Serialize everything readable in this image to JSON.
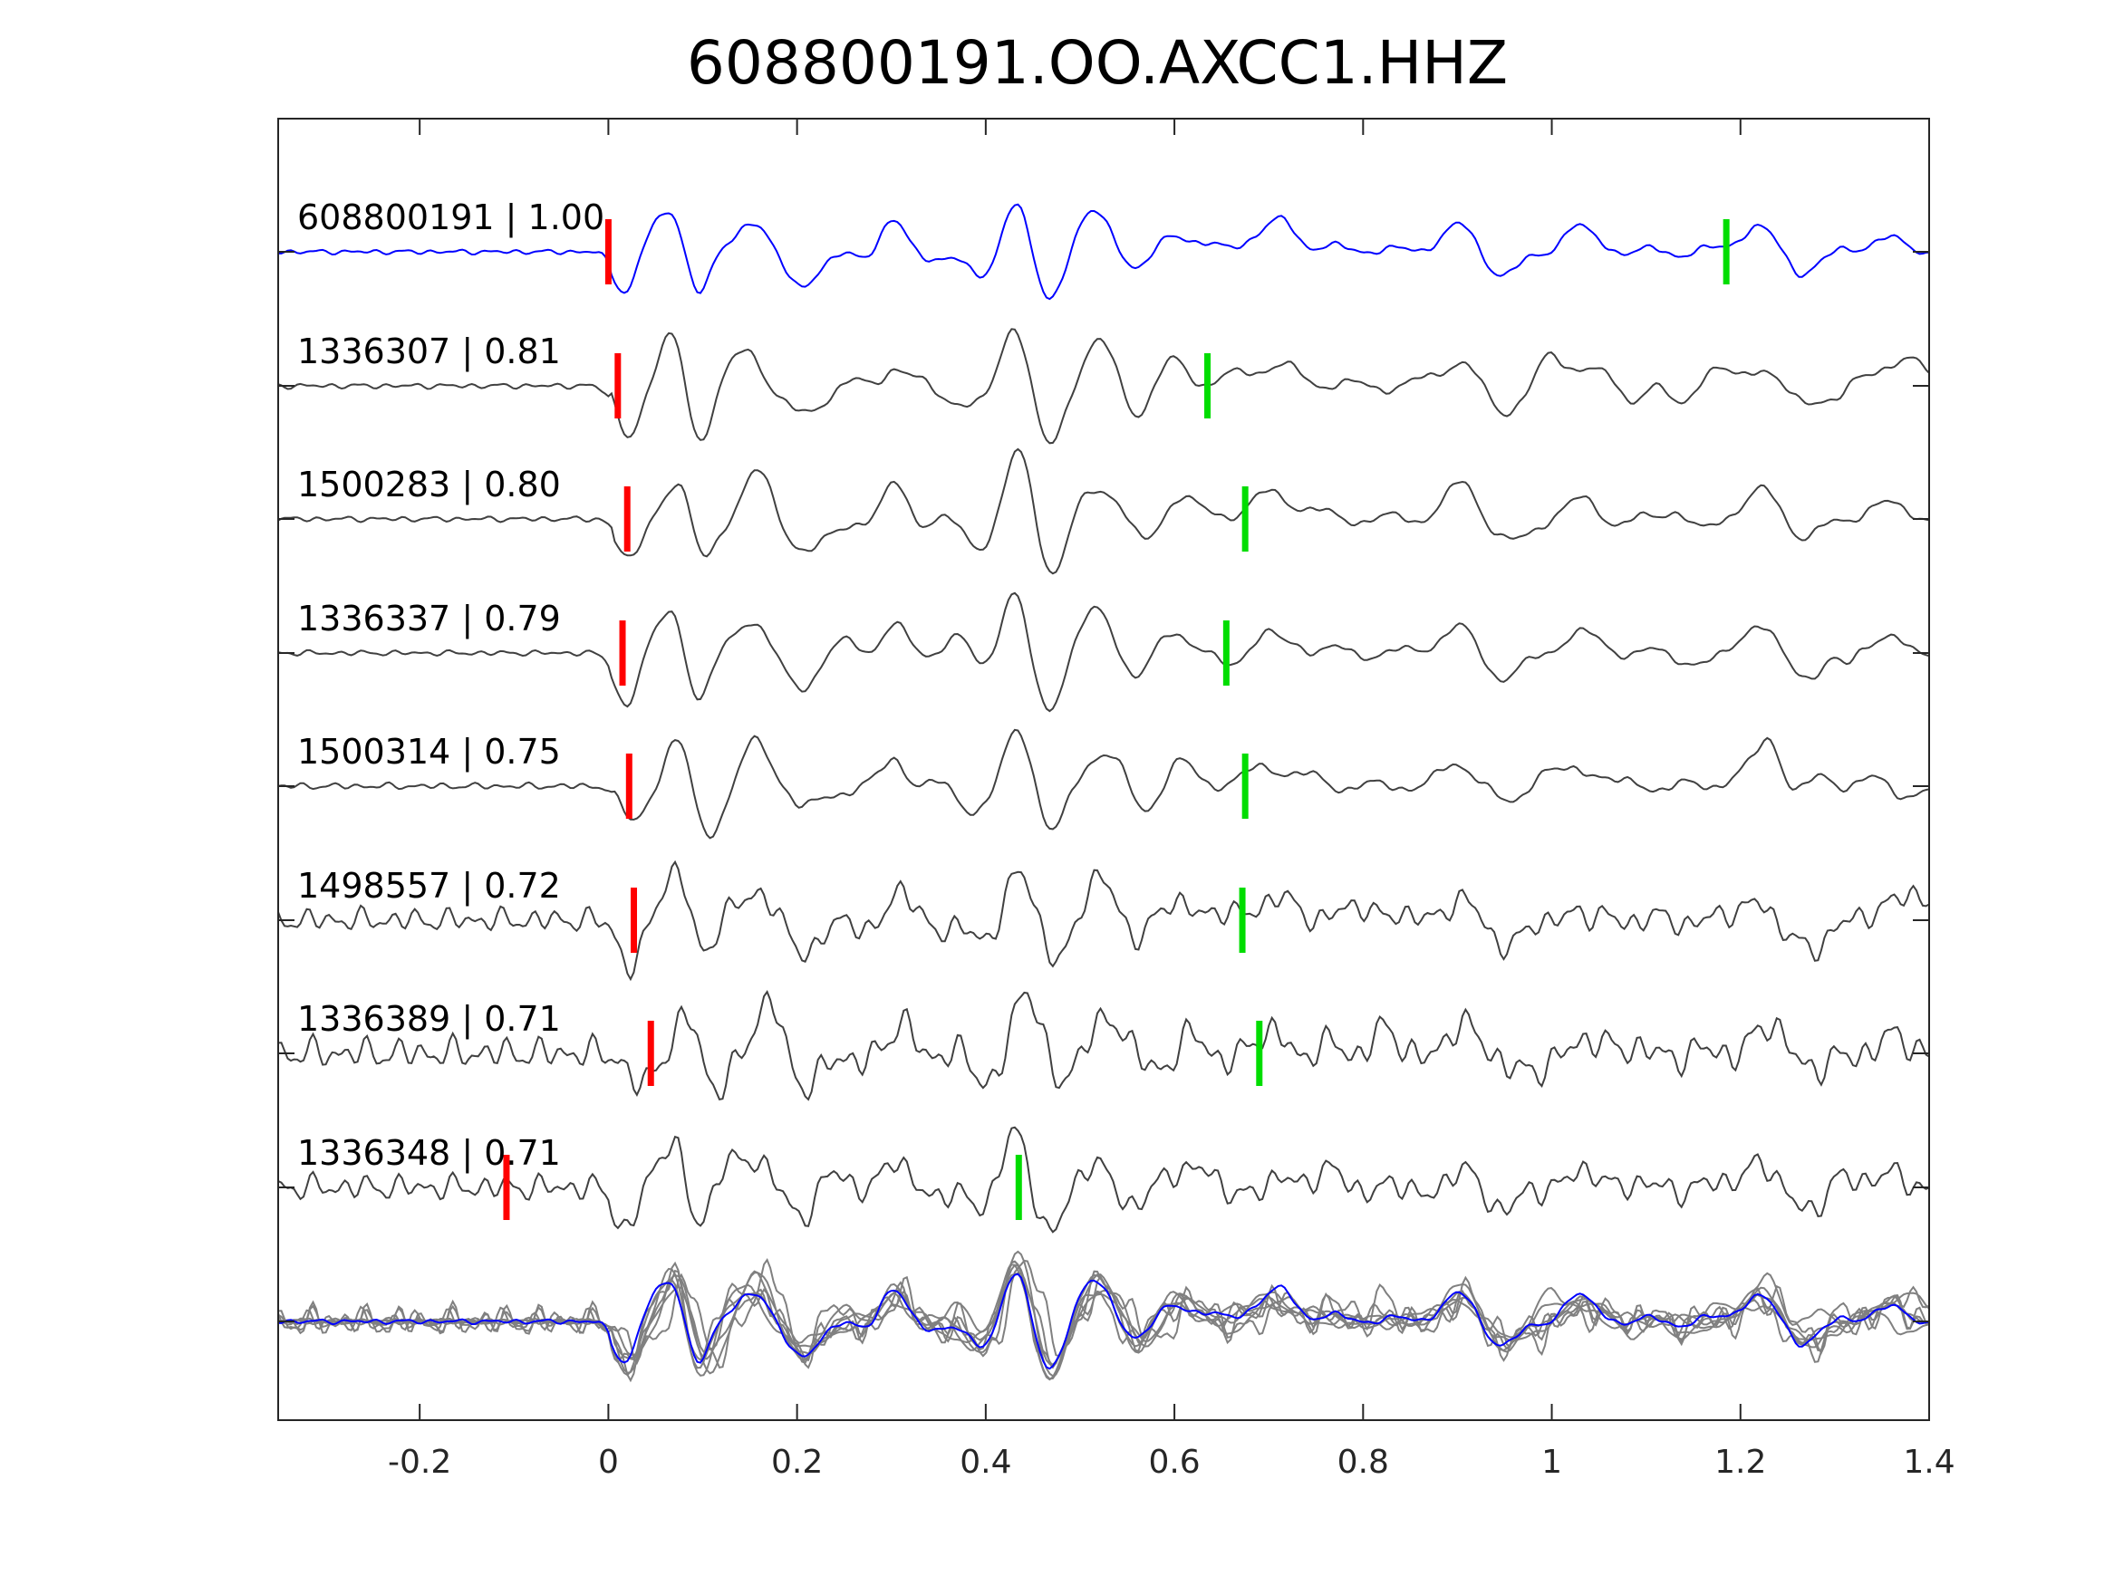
{
  "chart_data": {
    "type": "line",
    "title": "608800191.OO.AXCC1.HHZ",
    "xlim": [
      -0.35,
      1.4
    ],
    "x_ticks": [
      {
        "value": -0.2,
        "label": "-0.2"
      },
      {
        "value": 0,
        "label": "0"
      },
      {
        "value": 0.2,
        "label": "0.2"
      },
      {
        "value": 0.4,
        "label": "0.4"
      },
      {
        "value": 0.6,
        "label": "0.6"
      },
      {
        "value": 0.8,
        "label": "0.8"
      },
      {
        "value": 1.0,
        "label": "1"
      },
      {
        "value": 1.2,
        "label": "1.2"
      },
      {
        "value": 1.4,
        "label": "1.4"
      }
    ],
    "xlabel": "",
    "ylabel": "",
    "grid": false,
    "colors": {
      "template": "#0000ff",
      "matches": "#404040",
      "stack": "#808080",
      "p_pick": "#ff0000",
      "s_pick": "#00dd00",
      "axis": "#262626"
    },
    "series": [
      {
        "id": "608800191",
        "correlation": "1.00",
        "label": "608800191 | 1.00",
        "p_pick": 0.0,
        "s_pick": 1.185,
        "shift": 0.0,
        "amplitude": 1.0,
        "seed": 11,
        "noise": 0.03
      },
      {
        "id": "1336307",
        "correlation": "0.81",
        "label": "1336307 | 0.81",
        "p_pick": 0.01,
        "s_pick": 0.635,
        "shift": 0.0,
        "amplitude": 1.1,
        "seed": 23,
        "noise": 0.03
      },
      {
        "id": "1500283",
        "correlation": "0.80",
        "label": "1500283 | 0.80",
        "p_pick": 0.02,
        "s_pick": 0.675,
        "shift": 0.005,
        "amplitude": 1.1,
        "seed": 37,
        "noise": 0.03
      },
      {
        "id": "1336337",
        "correlation": "0.79",
        "label": "1336337 | 0.79",
        "p_pick": 0.015,
        "s_pick": 0.655,
        "shift": 0.0,
        "amplitude": 1.1,
        "seed": 41,
        "noise": 0.03
      },
      {
        "id": "1500314",
        "correlation": "0.75",
        "label": "1500314 | 0.75",
        "p_pick": 0.022,
        "s_pick": 0.675,
        "shift": 0.005,
        "amplitude": 1.0,
        "seed": 53,
        "noise": 0.04
      },
      {
        "id": "1498557",
        "correlation": "0.72",
        "label": "1498557 | 0.72",
        "p_pick": 0.027,
        "s_pick": 0.672,
        "shift": 0.005,
        "amplitude": 1.0,
        "seed": 67,
        "noise": 0.15
      },
      {
        "id": "1336389",
        "correlation": "0.71",
        "label": "1336389 | 0.71",
        "p_pick": 0.045,
        "s_pick": 0.69,
        "shift": 0.015,
        "amplitude": 1.0,
        "seed": 71,
        "noise": 0.2
      },
      {
        "id": "1336348",
        "correlation": "0.71",
        "label": "1336348 | 0.71",
        "p_pick": -0.108,
        "s_pick": 0.435,
        "shift": 0.0,
        "amplitude": 0.9,
        "seed": 83,
        "noise": 0.18
      }
    ]
  }
}
